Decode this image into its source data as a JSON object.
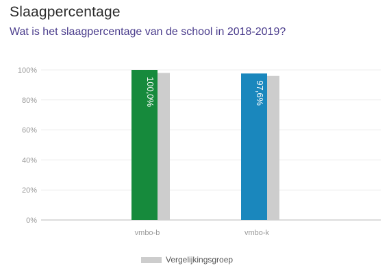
{
  "header": {
    "title": "Slaagpercentage",
    "subtitle": "Wat is het slaagpercentage van de school in 2018-2019?"
  },
  "chart_data": {
    "type": "bar",
    "categories": [
      "vmbo-b",
      "vmbo-k"
    ],
    "series": [
      {
        "values": [
          100.0,
          97.6
        ],
        "data_labels": [
          "100,0%",
          "97,6%"
        ],
        "colors": [
          "#168a3c",
          "#1a87bd"
        ]
      },
      {
        "name": "Vergelijkingsgroep",
        "values": [
          98,
          96
        ],
        "color": "#cdcdcd"
      }
    ],
    "yticks": [
      "0%",
      "20%",
      "40%",
      "60%",
      "80%",
      "100%"
    ],
    "ylim": [
      0,
      100
    ],
    "grid": true,
    "legend_position": "bottom-center"
  },
  "legend": {
    "items": [
      {
        "label": "Vergelijkingsgroep",
        "color": "#cdcdcd"
      }
    ]
  }
}
